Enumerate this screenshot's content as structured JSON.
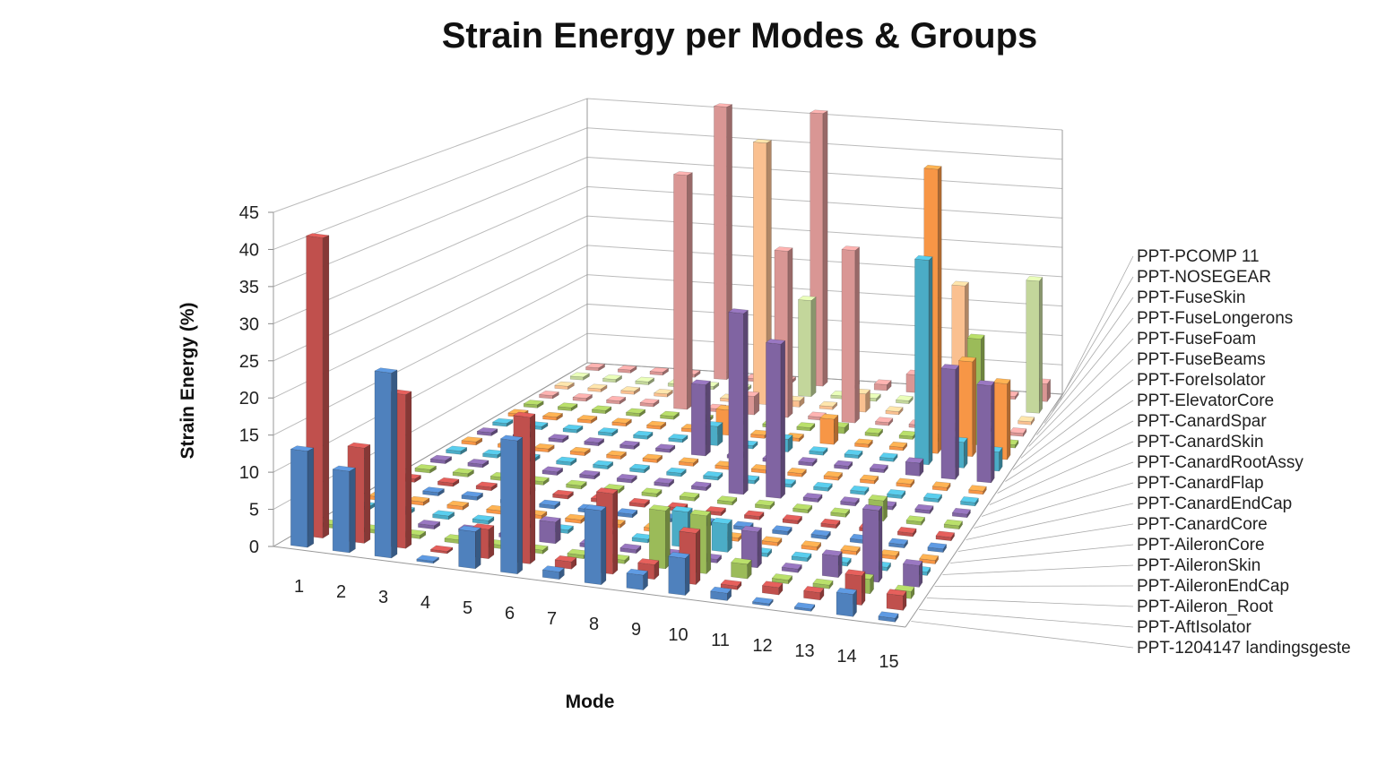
{
  "chart_data": {
    "type": "bar",
    "subtype": "3d-column",
    "title": "Strain Energy per Modes & Groups",
    "xlabel": "Mode",
    "ylabel": "Strain Energy (%)",
    "ylim": [
      0,
      45
    ],
    "yticks": [
      0,
      5,
      10,
      15,
      20,
      25,
      30,
      35,
      40,
      45
    ],
    "grid": true,
    "categories": [
      "1",
      "2",
      "3",
      "4",
      "5",
      "6",
      "7",
      "8",
      "9",
      "10",
      "11",
      "12",
      "13",
      "14",
      "15"
    ],
    "series": [
      {
        "name": "PPT-1204147 landingsgeste",
        "color": "#4F81BD",
        "values": [
          13,
          11,
          25,
          0.3,
          5,
          18,
          1,
          10,
          2,
          5,
          1,
          0.3,
          0.3,
          3,
          0.5
        ]
      },
      {
        "name": "PPT-AftIsolator",
        "color": "#C0504D",
        "values": [
          41,
          13,
          21,
          0.3,
          4,
          20,
          1,
          11,
          2,
          7,
          0.5,
          1,
          1,
          4,
          2
        ]
      },
      {
        "name": "PPT-Aileron_Root",
        "color": "#9BBB59",
        "values": [
          0.5,
          0.5,
          0.5,
          0.5,
          0.5,
          0.5,
          0.5,
          0.5,
          8,
          8,
          2,
          0.5,
          0.5,
          2,
          1
        ]
      },
      {
        "name": "PPT-AileronEndCap",
        "color": "#8064A2",
        "values": [
          0.5,
          0.5,
          0.5,
          0.5,
          0.5,
          3,
          0.5,
          0.5,
          0.5,
          0.5,
          5,
          0.5,
          3,
          10,
          3
        ]
      },
      {
        "name": "PPT-AileronSkin",
        "color": "#4BACC6",
        "values": [
          0.5,
          0.5,
          0.5,
          0.5,
          0.5,
          0.5,
          0.5,
          0.5,
          5,
          4,
          0.5,
          0.5,
          0.5,
          0.5,
          0.5
        ]
      },
      {
        "name": "PPT-AileronCore",
        "color": "#F79646",
        "values": [
          0.5,
          0.5,
          0.5,
          0.5,
          0.5,
          0.5,
          0.5,
          0.5,
          0.5,
          0.5,
          0.5,
          0.5,
          0.5,
          0.5,
          0.5
        ]
      },
      {
        "name": "PPT-CanardCore",
        "color": "#4F81BD",
        "values": [
          0.5,
          0.5,
          0.5,
          0.5,
          0.5,
          0.5,
          0.5,
          0.5,
          0.5,
          0.5,
          0.5,
          0.5,
          0.5,
          0.5,
          0.5
        ]
      },
      {
        "name": "PPT-CanardEndCap",
        "color": "#C0504D",
        "values": [
          0.5,
          0.5,
          0.5,
          0.5,
          0.5,
          0.5,
          0.5,
          0.5,
          0.5,
          0.5,
          0.5,
          0.5,
          0.5,
          0.5,
          0.5
        ]
      },
      {
        "name": "PPT-CanardFlap",
        "color": "#9BBB59",
        "values": [
          0.5,
          0.5,
          0.5,
          0.5,
          0.5,
          0.5,
          0.5,
          0.5,
          0.5,
          0.5,
          0.5,
          0.5,
          3,
          0.5,
          0.5
        ]
      },
      {
        "name": "PPT-CanardRootAssy",
        "color": "#8064A2",
        "values": [
          0.5,
          0.5,
          0.5,
          0.5,
          0.5,
          0.5,
          0.5,
          0.5,
          27,
          23,
          0.5,
          0.5,
          0.5,
          0.5,
          0.5
        ]
      },
      {
        "name": "PPT-CanardSkin",
        "color": "#4BACC6",
        "values": [
          0.5,
          0.5,
          0.5,
          0.5,
          0.5,
          0.5,
          0.5,
          0.5,
          0.5,
          0.5,
          0.5,
          0.5,
          0.5,
          0.5,
          0.5
        ]
      },
      {
        "name": "PPT-CanardSpar",
        "color": "#F79646",
        "values": [
          0.5,
          0.5,
          0.5,
          0.5,
          0.5,
          0.5,
          0.5,
          0.5,
          0.5,
          0.5,
          0.5,
          0.5,
          0.5,
          0.5,
          0.5
        ]
      },
      {
        "name": "PPT-ElevatorCore",
        "color": "#8064A2",
        "values": [
          0.5,
          0.5,
          0.5,
          0.5,
          0.5,
          0.5,
          11,
          0.5,
          0.5,
          0.5,
          0.5,
          0.5,
          2,
          17,
          15
        ]
      },
      {
        "name": "PPT-ForeIsolator",
        "color": "#4BACC6",
        "values": [
          0.5,
          0.5,
          0.5,
          0.5,
          0.5,
          0.5,
          3,
          0.5,
          2,
          0.5,
          0.5,
          0.5,
          32,
          4,
          3
        ]
      },
      {
        "name": "PPT-FuseBeams",
        "color": "#F79646",
        "values": [
          0.5,
          0.5,
          0.5,
          0.5,
          0.5,
          0.5,
          4,
          0.5,
          0.5,
          4,
          0.5,
          0.5,
          45,
          15,
          12
        ]
      },
      {
        "name": "PPT-FuseFoam",
        "color": "#9BBB59",
        "values": [
          0.5,
          0.5,
          0.5,
          0.5,
          0.5,
          0.5,
          0.5,
          0.5,
          0.5,
          1,
          0.5,
          0.5,
          0.5,
          17,
          0.5
        ]
      },
      {
        "name": "PPT-FuseLongerons",
        "color": "#D99694",
        "values": [
          0.5,
          0.5,
          0.5,
          0.5,
          38,
          0.5,
          3,
          27,
          0.5,
          28,
          0.5,
          0.5,
          0.5,
          0.5,
          0.5
        ]
      },
      {
        "name": "PPT-FuseSkin",
        "color": "#FAC090",
        "values": [
          0.5,
          0.5,
          0.5,
          0.5,
          0.5,
          0.5,
          43,
          1,
          0.5,
          3,
          0.5,
          0.5,
          22,
          3,
          0.5
        ]
      },
      {
        "name": "PPT-NOSEGEAR",
        "color": "#C3D69B",
        "values": [
          0.5,
          0.5,
          0.5,
          0.5,
          0.5,
          0.5,
          0.5,
          16,
          0.5,
          0.5,
          0.5,
          0.5,
          0.5,
          0.5,
          22
        ]
      },
      {
        "name": "PPT-PCOMP 11",
        "color": "#D99694",
        "values": [
          0.5,
          0.5,
          0.5,
          0.5,
          46,
          0.5,
          0.5,
          46,
          0.5,
          1,
          3,
          2,
          1,
          0.5,
          3
        ]
      }
    ]
  }
}
